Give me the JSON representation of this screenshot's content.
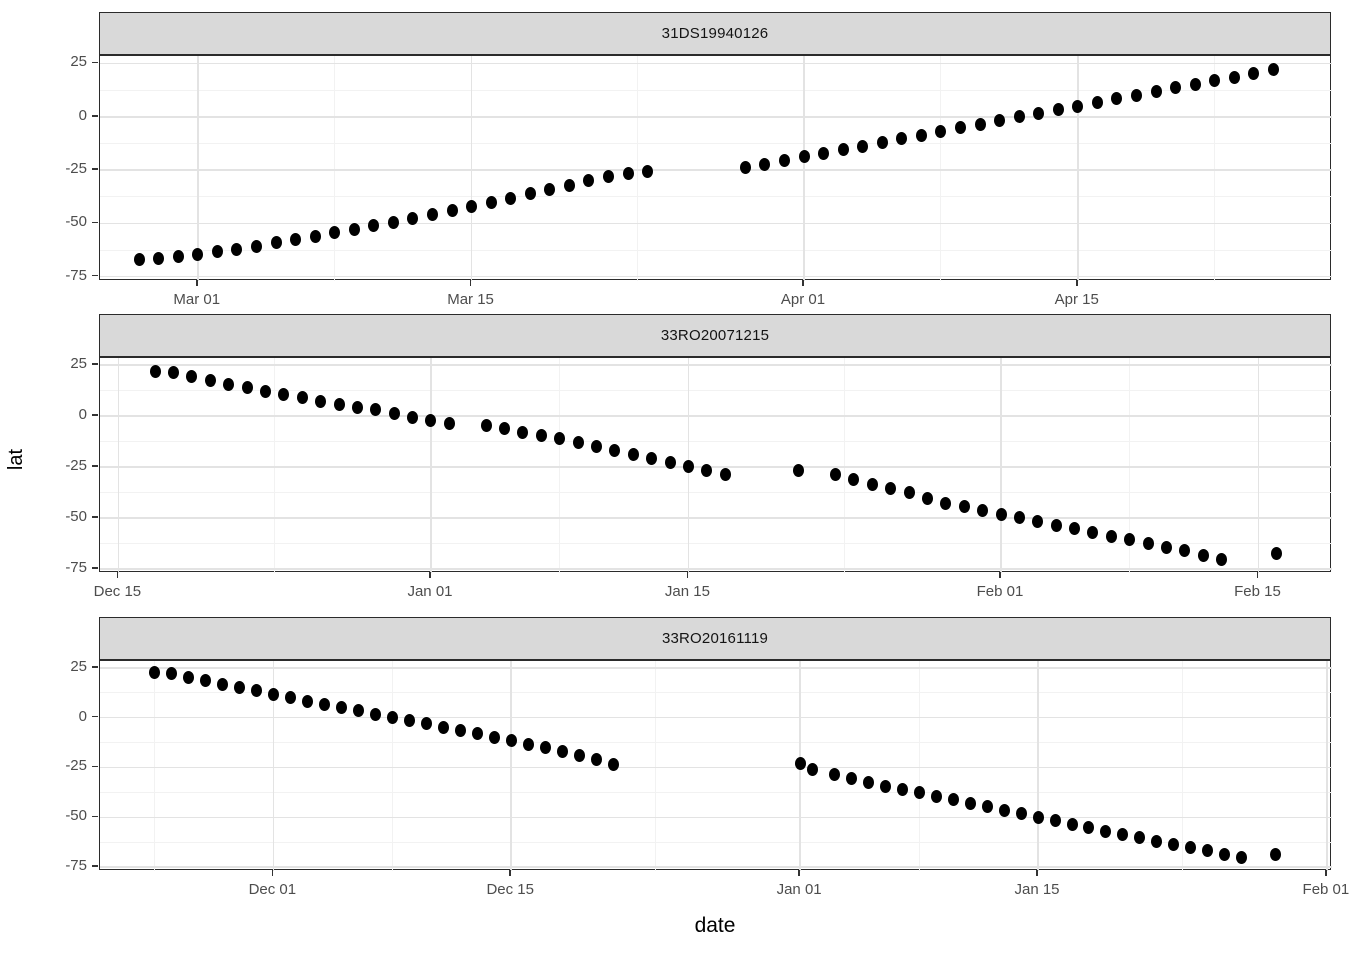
{
  "figure": {
    "y_axis_title": "lat",
    "x_axis_title": "date"
  },
  "colors": {
    "background": "#ffffff",
    "strip_bg": "#d9d9d9",
    "strip_border": "#2b2b2b",
    "panel_bg": "#ffffff",
    "panel_border": "#2b2b2b",
    "grid_major": "#e3e3e3",
    "grid_minor": "#f2f2f2",
    "point": "#000000",
    "tick_label": "#4d4d4d",
    "tick_mark": "#333333"
  },
  "chart_data": [
    {
      "type": "scatter",
      "facet_label": "31DS19940126",
      "date_range": [
        "Feb 26",
        "Apr 25"
      ],
      "x_domain": [
        0,
        63
      ],
      "x_ticks": [
        {
          "d": 5,
          "label": "Mar 01"
        },
        {
          "d": 19,
          "label": "Mar 15"
        },
        {
          "d": 36,
          "label": "Apr 01"
        },
        {
          "d": 50,
          "label": "Apr 15"
        }
      ],
      "x_minor_d": [
        12,
        27.5,
        43,
        57
      ],
      "y_ticks": [
        25,
        0,
        -25,
        -50,
        -75
      ],
      "y_minor": [
        12.5,
        -12.5,
        -37.5,
        -62.5
      ],
      "points": [
        [
          2,
          -67
        ],
        [
          3,
          -66.3
        ],
        [
          4,
          -65.4
        ],
        [
          5,
          -64.4
        ],
        [
          6,
          -63.3
        ],
        [
          7,
          -62
        ],
        [
          8,
          -60.6
        ],
        [
          9,
          -59.1
        ],
        [
          10,
          -57.6
        ],
        [
          11,
          -56
        ],
        [
          12,
          -54.4
        ],
        [
          13,
          -52.8
        ],
        [
          14,
          -51.1
        ],
        [
          15,
          -49.4
        ],
        [
          16,
          -47.6
        ],
        [
          17,
          -45.8
        ],
        [
          18,
          -44
        ],
        [
          19,
          -42.1
        ],
        [
          20,
          -40.2
        ],
        [
          21,
          -38.2
        ],
        [
          22,
          -36.2
        ],
        [
          23,
          -34.1
        ],
        [
          24,
          -32
        ],
        [
          25,
          -30
        ],
        [
          26,
          -28.2
        ],
        [
          27,
          -26.5
        ],
        [
          28,
          -25.5
        ],
        [
          33,
          -24
        ],
        [
          34,
          -22.3
        ],
        [
          35,
          -20.5
        ],
        [
          36,
          -18.8
        ],
        [
          37,
          -17.1
        ],
        [
          38,
          -15.4
        ],
        [
          39,
          -13.7
        ],
        [
          40,
          -12
        ],
        [
          41,
          -10.3
        ],
        [
          42,
          -8.6
        ],
        [
          43,
          -6.9
        ],
        [
          44,
          -5.2
        ],
        [
          45,
          -3.5
        ],
        [
          46,
          -1.8
        ],
        [
          47,
          -0.1
        ],
        [
          48,
          1.6
        ],
        [
          49,
          3.3
        ],
        [
          50,
          5
        ],
        [
          51,
          6.7
        ],
        [
          52,
          8.4
        ],
        [
          53,
          10.1
        ],
        [
          54,
          11.8
        ],
        [
          55,
          13.5
        ],
        [
          56,
          15.2
        ],
        [
          57,
          16.9
        ],
        [
          58,
          18.6
        ],
        [
          59,
          20.3
        ],
        [
          60,
          22
        ]
      ]
    },
    {
      "type": "scatter",
      "facet_label": "33RO20071215",
      "date_range": [
        "Dec 17",
        "Feb 16"
      ],
      "x_domain": [
        0,
        67
      ],
      "x_ticks": [
        {
          "d": 1,
          "label": "Dec 15"
        },
        {
          "d": 18,
          "label": "Jan 01"
        },
        {
          "d": 32,
          "label": "Jan 15"
        },
        {
          "d": 49,
          "label": "Feb 01"
        },
        {
          "d": 63,
          "label": "Feb 15"
        }
      ],
      "x_minor_d": [
        9.5,
        25,
        40.5,
        56
      ],
      "y_ticks": [
        25,
        0,
        -25,
        -50,
        -75
      ],
      "y_minor": [
        12.5,
        -12.5,
        -37.5,
        -62.5
      ],
      "points": [
        [
          3,
          22
        ],
        [
          4,
          21.4
        ],
        [
          5,
          19.6
        ],
        [
          6,
          17.6
        ],
        [
          7,
          15.7
        ],
        [
          8,
          13.9
        ],
        [
          9,
          12.2
        ],
        [
          10,
          10.5
        ],
        [
          11,
          8.9
        ],
        [
          12,
          7.2
        ],
        [
          13,
          5.6
        ],
        [
          14,
          4.1
        ],
        [
          15,
          3.1
        ],
        [
          16,
          1.5
        ],
        [
          17,
          -0.5
        ],
        [
          18,
          -2
        ],
        [
          19,
          -3.6
        ],
        [
          21,
          -4.6
        ],
        [
          22,
          -6.1
        ],
        [
          23,
          -8.1
        ],
        [
          24,
          -9.7
        ],
        [
          25,
          -11.2
        ],
        [
          26,
          -13.1
        ],
        [
          27,
          -15
        ],
        [
          28,
          -17
        ],
        [
          29,
          -19
        ],
        [
          30,
          -21
        ],
        [
          31,
          -23
        ],
        [
          32,
          -24.8
        ],
        [
          33,
          -26.6
        ],
        [
          34,
          -28.5
        ],
        [
          38,
          -26.5
        ],
        [
          40,
          -28.6
        ],
        [
          41,
          -31
        ],
        [
          42,
          -33.6
        ],
        [
          43,
          -35.6
        ],
        [
          44,
          -37.7
        ],
        [
          45,
          -40.3
        ],
        [
          46,
          -42.8
        ],
        [
          47,
          -44.6
        ],
        [
          48,
          -46.4
        ],
        [
          49,
          -48.2
        ],
        [
          50,
          -50
        ],
        [
          51,
          -51.8
        ],
        [
          52,
          -53.6
        ],
        [
          53,
          -55.4
        ],
        [
          54,
          -57.2
        ],
        [
          55,
          -59
        ],
        [
          56,
          -60.8
        ],
        [
          57,
          -62.6
        ],
        [
          58,
          -64.4
        ],
        [
          59,
          -66.2
        ],
        [
          60,
          -68.4
        ],
        [
          61,
          -70.5
        ],
        [
          64,
          -67.5
        ]
      ]
    },
    {
      "type": "scatter",
      "facet_label": "33RO20161119",
      "date_range": [
        "Nov 24",
        "Jan 29"
      ],
      "x_domain": [
        0,
        72.5
      ],
      "x_ticks": [
        {
          "d": 10.2,
          "label": "Dec 01"
        },
        {
          "d": 24.2,
          "label": "Dec 15"
        },
        {
          "d": 41.2,
          "label": "Jan 01"
        },
        {
          "d": 55.2,
          "label": "Jan 15"
        },
        {
          "d": 72.2,
          "label": "Feb 01"
        }
      ],
      "x_minor_d": [
        3.2,
        17.2,
        32.7,
        48.2,
        63.7
      ],
      "y_ticks": [
        25,
        0,
        -25,
        -50,
        -75
      ],
      "y_minor": [
        12.5,
        -12.5,
        -37.5,
        -62.5
      ],
      "points": [
        [
          3.2,
          22.5
        ],
        [
          4.2,
          22
        ],
        [
          5.2,
          20.3
        ],
        [
          6.2,
          18.6
        ],
        [
          7.2,
          16.9
        ],
        [
          8.2,
          15.2
        ],
        [
          9.2,
          13.5
        ],
        [
          10.2,
          11.8
        ],
        [
          11.2,
          10.1
        ],
        [
          12.2,
          8.4
        ],
        [
          13.2,
          6.7
        ],
        [
          14.2,
          5
        ],
        [
          15.2,
          3.4
        ],
        [
          16.2,
          1.8
        ],
        [
          17.2,
          0.2
        ],
        [
          18.2,
          -1.4
        ],
        [
          19.2,
          -3
        ],
        [
          20.2,
          -4.7
        ],
        [
          21.2,
          -6.4
        ],
        [
          22.2,
          -8.1
        ],
        [
          23.2,
          -9.8
        ],
        [
          24.2,
          -11.5
        ],
        [
          25.2,
          -13.2
        ],
        [
          26.2,
          -14.9
        ],
        [
          27.2,
          -16.8
        ],
        [
          28.2,
          -18.9
        ],
        [
          29.2,
          -21.2
        ],
        [
          30.2,
          -23.5
        ],
        [
          41.2,
          -23
        ],
        [
          41.9,
          -26
        ],
        [
          43.2,
          -28.5
        ],
        [
          44.2,
          -30.5
        ],
        [
          45.2,
          -32.5
        ],
        [
          46.2,
          -34.3
        ],
        [
          47.2,
          -36
        ],
        [
          48.2,
          -37.8
        ],
        [
          49.2,
          -39.5
        ],
        [
          50.2,
          -41.3
        ],
        [
          51.2,
          -43
        ],
        [
          52.2,
          -44.7
        ],
        [
          53.2,
          -46.4
        ],
        [
          54.2,
          -48.2
        ],
        [
          55.2,
          -50
        ],
        [
          56.2,
          -51.8
        ],
        [
          57.2,
          -53.5
        ],
        [
          58.2,
          -55.2
        ],
        [
          59.2,
          -57
        ],
        [
          60.2,
          -58.7
        ],
        [
          61.2,
          -60.3
        ],
        [
          62.2,
          -62
        ],
        [
          63.2,
          -63.5
        ],
        [
          64.2,
          -65
        ],
        [
          65.2,
          -66.5
        ],
        [
          66.2,
          -68.5
        ],
        [
          67.2,
          -70.3
        ],
        [
          69.2,
          -68.5
        ]
      ]
    }
  ]
}
